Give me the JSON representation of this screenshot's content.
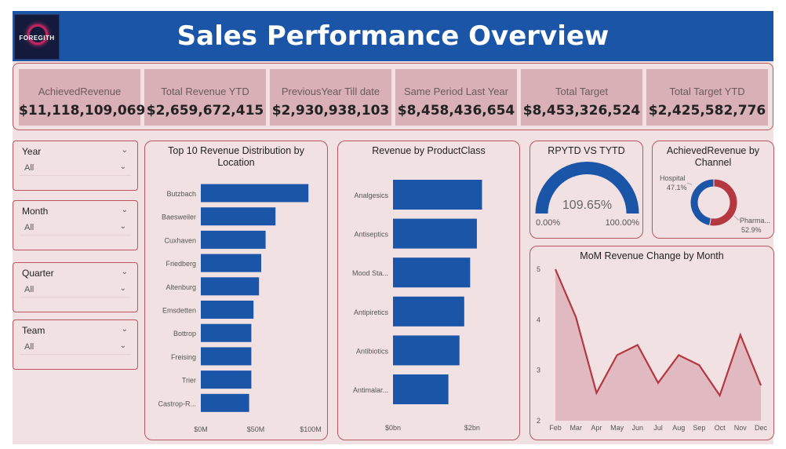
{
  "header": {
    "title": "Sales Performance Overview",
    "logo_text": "FOREGITH"
  },
  "kpis": [
    {
      "label": "AchievedRevenue",
      "value": "$11,118,109,069"
    },
    {
      "label": "Total Revenue YTD",
      "value": "$2,659,672,415"
    },
    {
      "label": "PreviousYear Till date",
      "value": "$2,930,938,103"
    },
    {
      "label": "Same Period Last Year",
      "value": "$8,458,436,654"
    },
    {
      "label": "Total Target",
      "value": "$8,453,326,524"
    },
    {
      "label": "Total Target YTD",
      "value": "$2,425,582,776"
    }
  ],
  "slicers": [
    {
      "title": "Year",
      "value": "All"
    },
    {
      "title": "Month",
      "value": "All"
    },
    {
      "title": "Quarter",
      "value": "All"
    },
    {
      "title": "Team",
      "value": "All"
    }
  ],
  "icons": {
    "dropdown": "chevron-down-icon"
  },
  "colors": {
    "header": "#1b55a8",
    "bar": "#1b55a8",
    "accent": "#b5373f",
    "background": "#f2e1e3",
    "kpi_card": "#d9b0b5"
  },
  "chart_data": [
    {
      "id": "location",
      "type": "bar",
      "orientation": "horizontal",
      "title": "Top 10 Revenue Distribution by Location",
      "categories": [
        "Butzbach",
        "Baesweiler",
        "Cuxhaven",
        "Friedberg",
        "Altenburg",
        "Emsdetten",
        "Bottrop",
        "Freising",
        "Trier",
        "Castrop-R..."
      ],
      "values": [
        98,
        68,
        59,
        55,
        53,
        48,
        46,
        46,
        46,
        44
      ],
      "unit": "$M",
      "xticks": [
        "$0M",
        "$50M",
        "$100M"
      ],
      "xlim": [
        0,
        100
      ]
    },
    {
      "id": "productclass",
      "type": "bar",
      "orientation": "horizontal",
      "title": "Revenue by ProductClass",
      "categories": [
        "Analgesics",
        "Antiseptics",
        "Mood Sta...",
        "Antipiretics",
        "Antibiotics",
        "Antimalar..."
      ],
      "values": [
        2.25,
        2.12,
        1.95,
        1.8,
        1.68,
        1.4
      ],
      "unit": "$bn",
      "xticks": [
        "$0bn",
        "$2bn"
      ],
      "xlim": [
        0,
        2.3
      ]
    },
    {
      "id": "gauge",
      "type": "gauge",
      "title": "RPYTD VS TYTD",
      "value": 109.65,
      "value_label": "109.65%",
      "min_label": "0.00%",
      "max_label": "100.00%"
    },
    {
      "id": "channel",
      "type": "pie",
      "donut": true,
      "title": "AchievedRevenue by Channel",
      "slices": [
        {
          "label": "Hospital",
          "value": 47.1,
          "value_label": "47.1%",
          "color": "#1b55a8"
        },
        {
          "label": "Pharma...",
          "value": 52.9,
          "value_label": "52.9%",
          "color": "#b5373f"
        }
      ]
    },
    {
      "id": "mom",
      "type": "area",
      "title": "MoM Revenue Change by Month",
      "categories": [
        "Feb",
        "Mar",
        "Apr",
        "May",
        "Jun",
        "Jul",
        "Aug",
        "Sep",
        "Oct",
        "Nov",
        "Dec"
      ],
      "values": [
        5.0,
        4.05,
        2.55,
        3.3,
        3.5,
        2.75,
        3.3,
        3.1,
        2.5,
        3.7,
        2.7
      ],
      "ylim": [
        2,
        5
      ],
      "yticks": [
        "2",
        "3",
        "4",
        "5"
      ]
    }
  ]
}
